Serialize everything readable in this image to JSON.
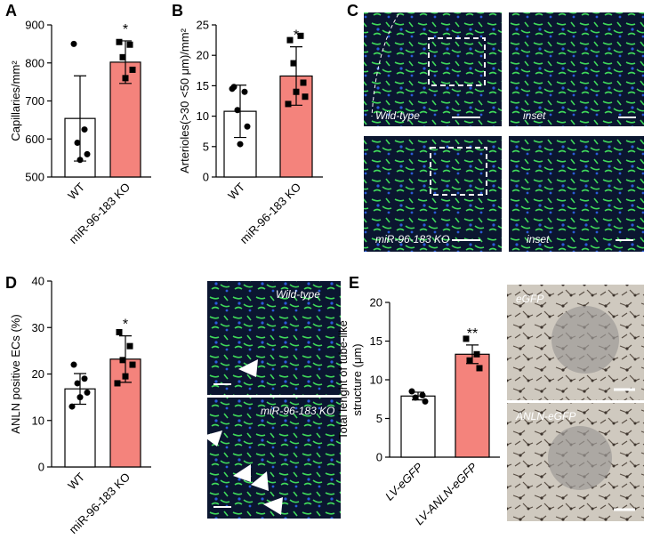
{
  "panels": [
    "A",
    "B",
    "C",
    "D",
    "E"
  ],
  "image_labels": [
    "Wild-type",
    "inset",
    "miR-96-183 KO",
    "inset",
    "Wild-type",
    "miR-96-183 KO",
    "eGFP",
    "ANLN-eGFP"
  ],
  "chart_data": [
    {
      "type": "bar",
      "ylabel": [
        "Capillaries/mm²"
      ],
      "categories": [
        "WT",
        "miR-96-183 KO"
      ],
      "values": [
        654,
        802
      ],
      "errors": [
        112,
        56
      ],
      "points": [
        [
          850,
          625,
          590,
          560,
          545
        ],
        [
          855,
          848,
          815,
          782,
          760
        ]
      ],
      "significance": [
        null,
        "*"
      ],
      "colors": [
        "#ffffff",
        "#f4837c"
      ],
      "markers": [
        "circle",
        "square"
      ],
      "ylim": [
        500,
        900
      ],
      "yticks": [
        500,
        600,
        700,
        800,
        900
      ],
      "italic_categories": false
    },
    {
      "type": "bar",
      "ylabel": [
        "Arterioles(>30 <50 μm)/mm²"
      ],
      "categories": [
        "WT",
        "miR-96-183 KO"
      ],
      "values": [
        10.8,
        16.6
      ],
      "errors": [
        4.3,
        4.8
      ],
      "points": [
        [
          14.8,
          14.0,
          11.0,
          8.3,
          5.4,
          14.5
        ],
        [
          22.5,
          23.2,
          18.7,
          15.5,
          14.0,
          12.0,
          13.2
        ]
      ],
      "significance": [
        null,
        "*"
      ],
      "colors": [
        "#ffffff",
        "#f4837c"
      ],
      "markers": [
        "circle",
        "square"
      ],
      "ylim": [
        0,
        25
      ],
      "yticks": [
        0,
        5,
        10,
        15,
        20,
        25
      ],
      "italic_categories": false
    },
    {
      "type": "bar",
      "ylabel": [
        "ANLN positive ECs (%)"
      ],
      "categories": [
        "WT",
        "miR-96-183 KO"
      ],
      "values": [
        16.8,
        23.2
      ],
      "errors": [
        3.3,
        5.0
      ],
      "points": [
        [
          22,
          19,
          18,
          16,
          15,
          13
        ],
        [
          29,
          26,
          23,
          22,
          19.5,
          18
        ]
      ],
      "significance": [
        null,
        "*"
      ],
      "colors": [
        "#ffffff",
        "#f4837c"
      ],
      "markers": [
        "circle",
        "square"
      ],
      "ylim": [
        0,
        40
      ],
      "yticks": [
        0,
        10,
        20,
        30,
        40
      ],
      "italic_categories": false
    },
    {
      "type": "bar",
      "ylabel": [
        "Total lenght of tube-like",
        "structure (μm)"
      ],
      "categories": [
        "LV-eGFP",
        "LV-ANLN-eGFP"
      ],
      "values": [
        7.9,
        13.3
      ],
      "errors": [
        0.5,
        1.2
      ],
      "points": [
        [
          8.5,
          8.0,
          7.7,
          7.2
        ],
        [
          15.3,
          13.3,
          12.5,
          11.5
        ]
      ],
      "significance": [
        null,
        "**"
      ],
      "colors": [
        "#ffffff",
        "#f4837c"
      ],
      "markers": [
        "circle",
        "square"
      ],
      "ylim": [
        0,
        20
      ],
      "yticks": [
        0,
        5,
        10,
        15,
        20
      ],
      "italic_categories": true
    }
  ]
}
